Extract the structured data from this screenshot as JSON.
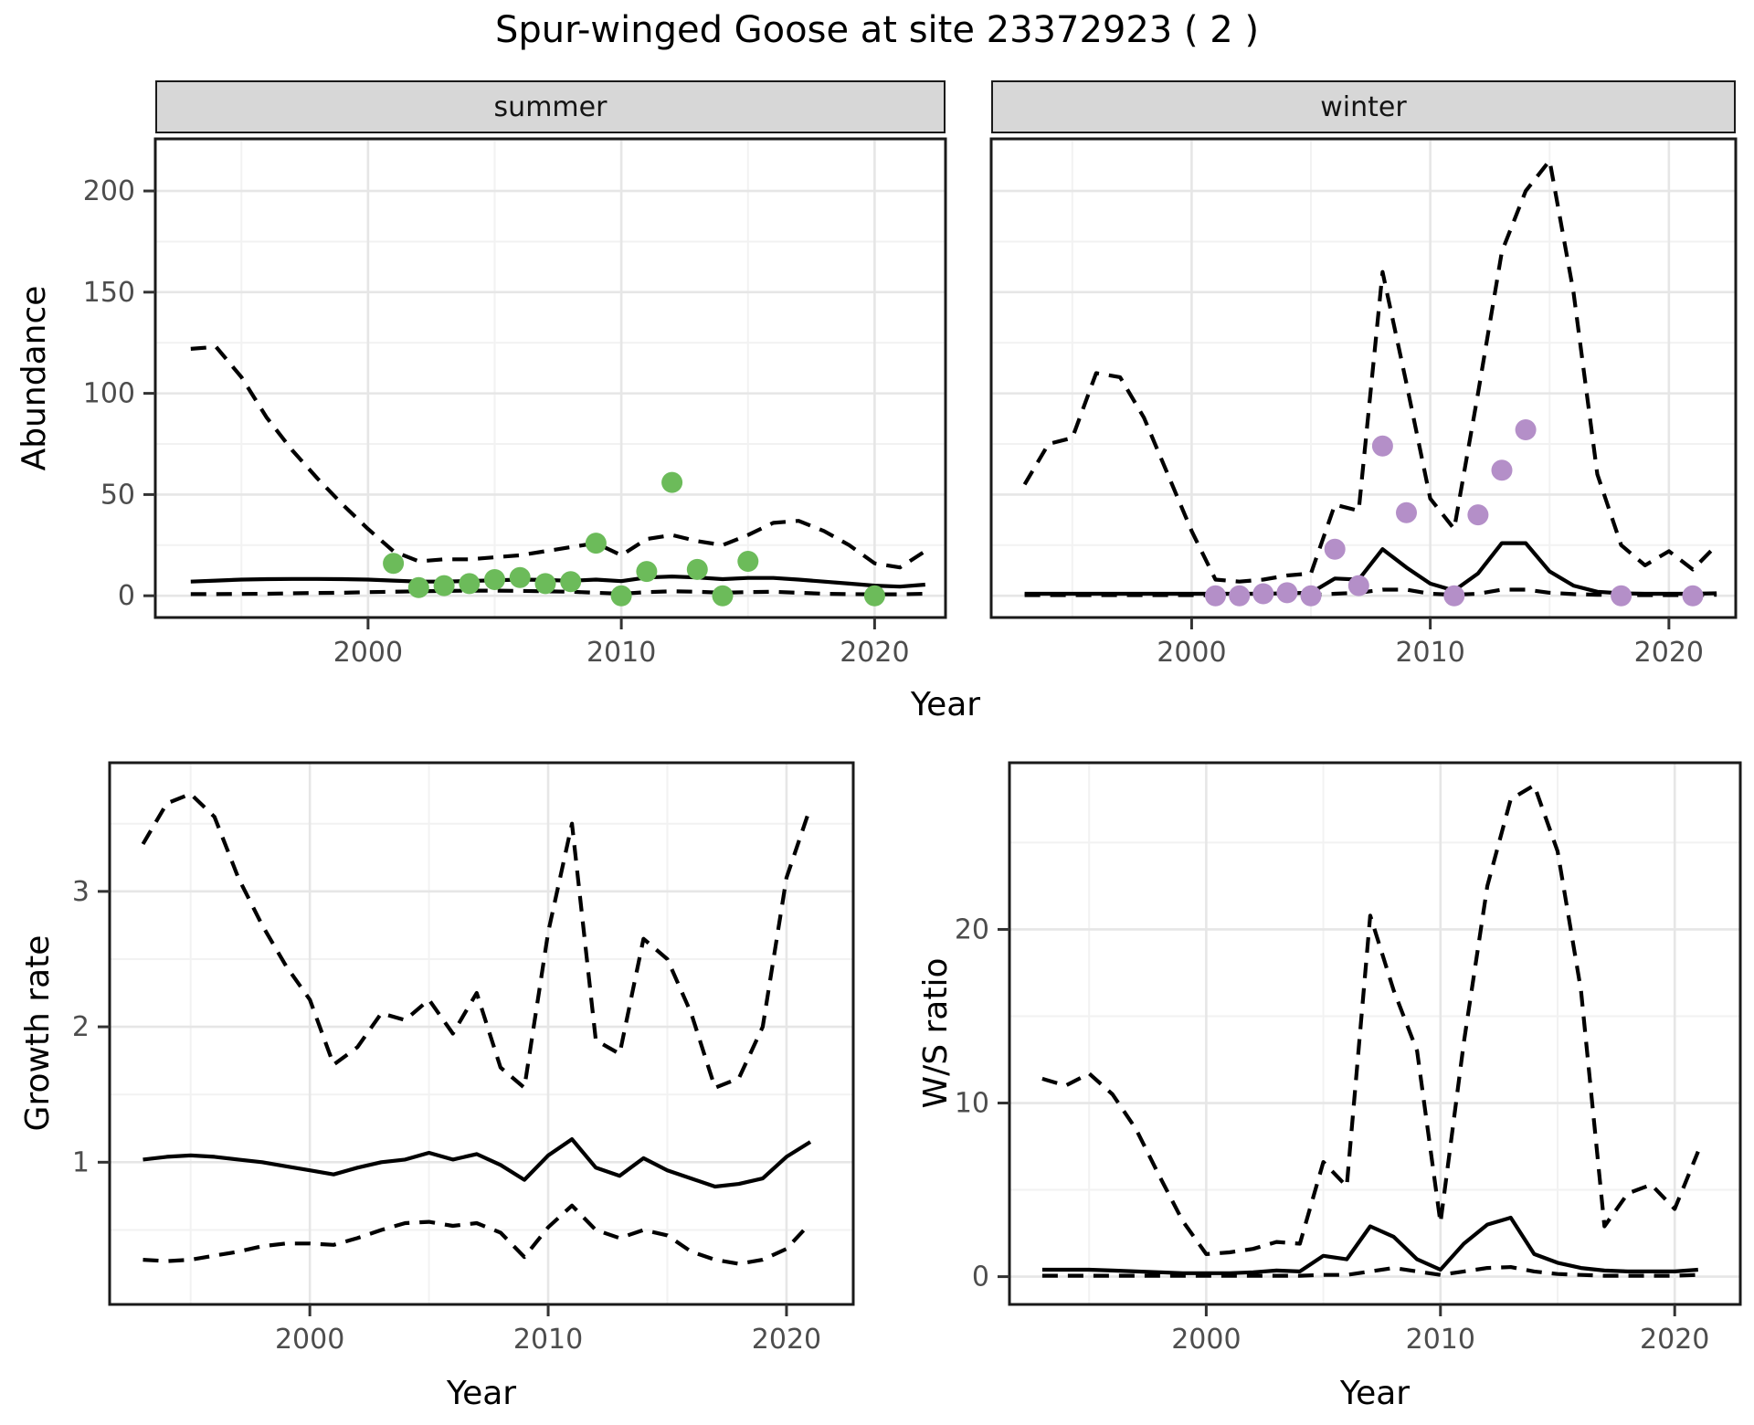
{
  "title": "Spur-winged Goose at site 23372923 ( 2 )",
  "axis_titles": {
    "abundance": "Abundance",
    "growth": "Growth rate",
    "ws": "W/S ratio",
    "year_top": "Year",
    "year_bottom_left": "Year",
    "year_bottom_right": "Year"
  },
  "colors": {
    "summer_points": "#6CBB5A",
    "winter_points": "#B48FC8",
    "line": "#000000",
    "axis_text": "#4D4D4D",
    "tick_mark": "#333333",
    "panel_border": "#1A1A1A",
    "strip_fill": "#D7D7D7",
    "grid_major": "#E6E6E6",
    "grid_minor": "#F2F2F2"
  },
  "chart_data": [
    {
      "id": "abundance-summer",
      "type": "line",
      "facet_label": "summer",
      "xlabel": "Year",
      "ylabel": "Abundance",
      "xlim": [
        1991.6,
        2022.8
      ],
      "ylim": [
        -10.75,
        225.75
      ],
      "x_ticks": [
        2000,
        2010,
        2020
      ],
      "x_minor": [
        1995,
        2005,
        2015
      ],
      "y_ticks": [
        0,
        50,
        100,
        150,
        200
      ],
      "y_minor": [
        25,
        75,
        125,
        175,
        225
      ],
      "grid": true,
      "legend": "none",
      "years": [
        1993,
        1994,
        1995,
        1996,
        1997,
        1998,
        1999,
        2000,
        2001,
        2002,
        2003,
        2004,
        2005,
        2006,
        2007,
        2008,
        2009,
        2010,
        2011,
        2012,
        2013,
        2014,
        2015,
        2016,
        2017,
        2018,
        2019,
        2020,
        2021,
        2022
      ],
      "series": [
        {
          "name": "upper_ci",
          "style": "dashed",
          "values": [
            122,
            123,
            108,
            88,
            72,
            58,
            45,
            33,
            22,
            17,
            18,
            18,
            19,
            20,
            22,
            24,
            26,
            20,
            28,
            30,
            27,
            25,
            30,
            36,
            37,
            32,
            25,
            16,
            14,
            22
          ]
        },
        {
          "name": "model_fit",
          "style": "solid",
          "values": [
            7,
            7.5,
            8,
            8.2,
            8.3,
            8.3,
            8.2,
            8,
            7.5,
            7,
            7,
            7.3,
            7.6,
            8,
            7.8,
            7.4,
            8,
            7.2,
            9,
            9.5,
            9,
            8.2,
            8.8,
            8.8,
            8,
            7,
            6,
            5,
            4.5,
            5.5
          ]
        },
        {
          "name": "lower_ci",
          "style": "dashed",
          "values": [
            0.8,
            0.8,
            0.9,
            1,
            1.2,
            1.4,
            1.5,
            1.8,
            2,
            2.2,
            2.4,
            2.5,
            2.5,
            2.4,
            2.2,
            2,
            1.5,
            1,
            1.8,
            2.2,
            2,
            1.5,
            1.8,
            2,
            1.5,
            1,
            0.8,
            0.7,
            0.7,
            1
          ]
        }
      ],
      "points": {
        "name": "observed_counts_summer",
        "color": "#6CBB5A",
        "x": [
          2001,
          2002,
          2003,
          2004,
          2005,
          2006,
          2007,
          2008,
          2009,
          2010,
          2011,
          2012,
          2013,
          2014,
          2015,
          2020
        ],
        "y": [
          16,
          4,
          5,
          6,
          8,
          9,
          6,
          7,
          26,
          0,
          12,
          56,
          13,
          0,
          17,
          0
        ]
      }
    },
    {
      "id": "abundance-winter",
      "type": "line",
      "facet_label": "winter",
      "xlabel": "Year",
      "ylabel": "Abundance",
      "xlim": [
        1991.6,
        2022.8
      ],
      "ylim": [
        -10.75,
        225.75
      ],
      "x_ticks": [
        2000,
        2010,
        2020
      ],
      "x_minor": [
        1995,
        2005,
        2015
      ],
      "y_ticks": [
        0,
        50,
        100,
        150,
        200
      ],
      "y_minor": [
        25,
        75,
        125,
        175,
        225
      ],
      "grid": true,
      "legend": "none",
      "years": [
        1993,
        1994,
        1995,
        1996,
        1997,
        1998,
        1999,
        2000,
        2001,
        2002,
        2003,
        2004,
        2005,
        2006,
        2007,
        2008,
        2009,
        2010,
        2011,
        2012,
        2013,
        2014,
        2015,
        2016,
        2017,
        2018,
        2019,
        2020,
        2021,
        2022
      ],
      "series": [
        {
          "name": "upper_ci",
          "style": "dashed",
          "values": [
            55,
            75,
            78,
            110,
            108,
            88,
            60,
            32,
            8,
            7,
            8,
            10,
            11,
            45,
            42,
            160,
            105,
            48,
            33,
            100,
            170,
            200,
            215,
            150,
            60,
            25,
            15,
            22,
            13,
            25
          ]
        },
        {
          "name": "model_fit",
          "style": "solid",
          "values": [
            1,
            1,
            1,
            1,
            1,
            1,
            1,
            1,
            1,
            1,
            1,
            1.2,
            1.5,
            8.5,
            8,
            23,
            14,
            6,
            2.5,
            11,
            26,
            26,
            12,
            5,
            2,
            1.2,
            1,
            1,
            1,
            1.2
          ]
        },
        {
          "name": "lower_ci",
          "style": "dashed",
          "values": [
            0.3,
            0.3,
            0.3,
            0.3,
            0.3,
            0.3,
            0.3,
            0.3,
            0.2,
            0.2,
            0.2,
            0.2,
            0.3,
            1,
            1.5,
            3,
            3,
            1,
            0.5,
            1,
            3,
            3,
            1.5,
            0.8,
            0.5,
            0.3,
            0.3,
            0.3,
            0.3,
            0.5
          ]
        }
      ],
      "points": {
        "name": "observed_counts_winter",
        "color": "#B48FC8",
        "x": [
          2001,
          2002,
          2003,
          2004,
          2005,
          2006,
          2007,
          2008,
          2009,
          2011,
          2012,
          2013,
          2014,
          2018,
          2021
        ],
        "y": [
          0,
          0,
          1,
          1.5,
          0,
          23,
          5,
          74,
          41,
          0,
          40,
          62,
          82,
          0,
          0
        ]
      }
    },
    {
      "id": "growth-rate",
      "type": "line",
      "facet_label": null,
      "xlabel": "Year",
      "ylabel": "Growth rate",
      "xlim": [
        1991.6,
        2022.8
      ],
      "ylim": [
        -0.05,
        3.95
      ],
      "x_ticks": [
        2000,
        2010,
        2020
      ],
      "x_minor": [
        1995,
        2005,
        2015
      ],
      "y_ticks": [
        1,
        2,
        3
      ],
      "y_minor": [
        0.5,
        1.5,
        2.5,
        3.5
      ],
      "grid": true,
      "legend": "none",
      "years": [
        1993,
        1994,
        1995,
        1996,
        1997,
        1998,
        1999,
        2000,
        2001,
        2002,
        2003,
        2004,
        2005,
        2006,
        2007,
        2008,
        2009,
        2010,
        2011,
        2012,
        2013,
        2014,
        2015,
        2016,
        2017,
        2018,
        2019,
        2020,
        2021
      ],
      "series": [
        {
          "name": "upper_ci",
          "style": "dashed",
          "values": [
            3.35,
            3.65,
            3.72,
            3.55,
            3.1,
            2.75,
            2.45,
            2.2,
            1.72,
            1.85,
            2.1,
            2.05,
            2.2,
            1.95,
            2.25,
            1.7,
            1.55,
            2.7,
            3.5,
            1.9,
            1.8,
            2.65,
            2.5,
            2.1,
            1.55,
            1.62,
            2.0,
            3.1,
            3.62
          ]
        },
        {
          "name": "model_fit",
          "style": "solid",
          "values": [
            1.02,
            1.04,
            1.05,
            1.04,
            1.02,
            1.0,
            0.97,
            0.94,
            0.91,
            0.96,
            1.0,
            1.02,
            1.07,
            1.02,
            1.06,
            0.98,
            0.87,
            1.05,
            1.17,
            0.96,
            0.9,
            1.03,
            0.94,
            0.88,
            0.82,
            0.84,
            0.88,
            1.04,
            1.15
          ]
        },
        {
          "name": "lower_ci",
          "style": "dashed",
          "values": [
            0.28,
            0.27,
            0.28,
            0.31,
            0.34,
            0.38,
            0.4,
            0.4,
            0.39,
            0.44,
            0.5,
            0.55,
            0.56,
            0.53,
            0.55,
            0.48,
            0.3,
            0.52,
            0.68,
            0.5,
            0.44,
            0.5,
            0.46,
            0.34,
            0.28,
            0.25,
            0.28,
            0.36,
            0.55
          ]
        }
      ],
      "points": null
    },
    {
      "id": "ws-ratio",
      "type": "line",
      "facet_label": null,
      "xlabel": "Year",
      "ylabel": "W/S ratio",
      "xlim": [
        1991.6,
        2022.8
      ],
      "ylim": [
        -1.6,
        29.6
      ],
      "x_ticks": [
        2000,
        2010,
        2020
      ],
      "x_minor": [
        1995,
        2005,
        2015
      ],
      "y_ticks": [
        0,
        10,
        20
      ],
      "y_minor": [
        5,
        15,
        25
      ],
      "grid": true,
      "legend": "none",
      "years": [
        1993,
        1994,
        1995,
        1996,
        1997,
        1998,
        1999,
        2000,
        2001,
        2002,
        2003,
        2004,
        2005,
        2006,
        2007,
        2008,
        2009,
        2010,
        2011,
        2012,
        2013,
        2014,
        2015,
        2016,
        2017,
        2018,
        2019,
        2020,
        2021
      ],
      "series": [
        {
          "name": "upper_ci",
          "style": "dashed",
          "values": [
            11.4,
            11.0,
            11.7,
            10.5,
            8.5,
            5.8,
            3.2,
            1.3,
            1.4,
            1.6,
            2.0,
            1.9,
            6.6,
            5.2,
            20.8,
            16.5,
            13.0,
            3.1,
            13.5,
            22.5,
            27.5,
            28.3,
            24.5,
            16.5,
            2.9,
            4.8,
            5.3,
            3.9,
            7.2
          ]
        },
        {
          "name": "model_fit",
          "style": "solid",
          "values": [
            0.4,
            0.4,
            0.4,
            0.35,
            0.3,
            0.25,
            0.2,
            0.2,
            0.2,
            0.25,
            0.35,
            0.3,
            1.2,
            1.0,
            2.9,
            2.3,
            1.0,
            0.4,
            1.9,
            3.0,
            3.4,
            1.3,
            0.8,
            0.5,
            0.35,
            0.3,
            0.3,
            0.3,
            0.4
          ]
        },
        {
          "name": "lower_ci",
          "style": "dashed",
          "values": [
            0.05,
            0.05,
            0.05,
            0.05,
            0.05,
            0.05,
            0.05,
            0.05,
            0.05,
            0.05,
            0.05,
            0.05,
            0.1,
            0.1,
            0.3,
            0.5,
            0.3,
            0.1,
            0.3,
            0.5,
            0.55,
            0.3,
            0.15,
            0.1,
            0.05,
            0.05,
            0.05,
            0.05,
            0.1
          ]
        }
      ],
      "points": null
    }
  ]
}
